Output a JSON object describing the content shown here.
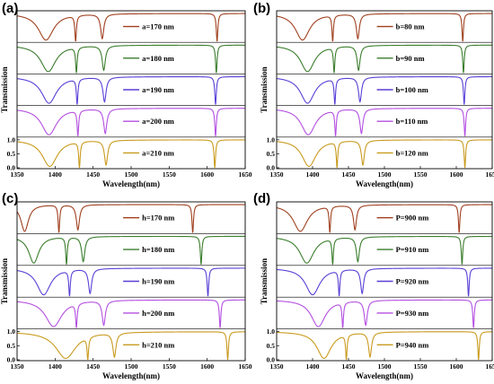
{
  "chart_data": [
    {
      "type": "line",
      "panel_label": "(a)",
      "xlabel": "Wavelength(nm)",
      "ylabel": "Transmission",
      "xlim": [
        1350,
        1650
      ],
      "xticks": [
        1350,
        1400,
        1450,
        1500,
        1550,
        1600,
        1650
      ],
      "yticks": [
        0.0,
        0.5,
        1.0
      ],
      "series": [
        {
          "name": "a=170 nm",
          "color": "#a0401f",
          "dips": [
            {
              "x": 1388,
              "w": 12,
              "d": 0.95
            },
            {
              "x": 1427,
              "w": 1.2,
              "d": 1.0
            },
            {
              "x": 1462,
              "w": 2.5,
              "d": 0.9
            },
            {
              "x": 1613,
              "w": 1.2,
              "d": 1.0
            }
          ]
        },
        {
          "name": "a=180 nm",
          "color": "#3a7d2c",
          "dips": [
            {
              "x": 1391,
              "w": 12,
              "d": 0.95
            },
            {
              "x": 1428,
              "w": 1.2,
              "d": 1.0
            },
            {
              "x": 1464,
              "w": 2.5,
              "d": 0.9
            },
            {
              "x": 1612,
              "w": 1.2,
              "d": 1.0
            }
          ]
        },
        {
          "name": "a=190 nm",
          "color": "#5a3fd6",
          "dips": [
            {
              "x": 1392,
              "w": 12,
              "d": 0.95
            },
            {
              "x": 1429,
              "w": 1.2,
              "d": 1.0
            },
            {
              "x": 1465,
              "w": 2.5,
              "d": 0.9
            },
            {
              "x": 1611,
              "w": 1.2,
              "d": 1.0
            }
          ]
        },
        {
          "name": "a=200 nm",
          "color": "#b44fe0",
          "dips": [
            {
              "x": 1392,
              "w": 12,
              "d": 0.95
            },
            {
              "x": 1430,
              "w": 1.2,
              "d": 1.0
            },
            {
              "x": 1466,
              "w": 2.5,
              "d": 0.9
            },
            {
              "x": 1611,
              "w": 1.2,
              "d": 1.0
            }
          ]
        },
        {
          "name": "a=210 nm",
          "color": "#c99a1e",
          "dips": [
            {
              "x": 1393,
              "w": 12,
              "d": 0.95
            },
            {
              "x": 1432,
              "w": 1.2,
              "d": 1.0
            },
            {
              "x": 1467,
              "w": 2.5,
              "d": 0.9
            },
            {
              "x": 1610,
              "w": 1.2,
              "d": 1.0
            }
          ]
        }
      ]
    },
    {
      "type": "line",
      "panel_label": "(b)",
      "xlabel": "Wavelength(nm)",
      "ylabel": "Transmission",
      "xlim": [
        1350,
        1650
      ],
      "xticks": [
        1350,
        1400,
        1450,
        1500,
        1550,
        1600,
        1650
      ],
      "yticks": [
        0.0,
        0.5,
        1.0
      ],
      "series": [
        {
          "name": "b=80 nm",
          "color": "#a0401f",
          "dips": [
            {
              "x": 1386,
              "w": 12,
              "d": 0.95
            },
            {
              "x": 1428,
              "w": 1.2,
              "d": 1.0
            },
            {
              "x": 1463,
              "w": 2.5,
              "d": 0.9
            },
            {
              "x": 1609,
              "w": 1.2,
              "d": 1.0
            }
          ]
        },
        {
          "name": "b=90 nm",
          "color": "#3a7d2c",
          "dips": [
            {
              "x": 1393,
              "w": 12,
              "d": 0.95
            },
            {
              "x": 1430,
              "w": 1.2,
              "d": 1.0
            },
            {
              "x": 1464,
              "w": 2.5,
              "d": 0.9
            },
            {
              "x": 1610,
              "w": 1.2,
              "d": 1.0
            }
          ]
        },
        {
          "name": "b=100 nm",
          "color": "#5a3fd6",
          "dips": [
            {
              "x": 1393,
              "w": 12,
              "d": 0.95
            },
            {
              "x": 1431,
              "w": 1.2,
              "d": 1.0
            },
            {
              "x": 1466,
              "w": 2.5,
              "d": 0.9
            },
            {
              "x": 1611,
              "w": 1.2,
              "d": 1.0
            }
          ]
        },
        {
          "name": "b=110 nm",
          "color": "#b44fe0",
          "dips": [
            {
              "x": 1394,
              "w": 12,
              "d": 0.95
            },
            {
              "x": 1432,
              "w": 1.2,
              "d": 1.0
            },
            {
              "x": 1468,
              "w": 2.5,
              "d": 0.9
            },
            {
              "x": 1612,
              "w": 1.2,
              "d": 1.0
            }
          ]
        },
        {
          "name": "b=120 nm",
          "color": "#c99a1e",
          "dips": [
            {
              "x": 1395,
              "w": 12,
              "d": 0.95
            },
            {
              "x": 1434,
              "w": 1.2,
              "d": 1.0
            },
            {
              "x": 1470,
              "w": 2.5,
              "d": 0.9
            },
            {
              "x": 1612,
              "w": 1.2,
              "d": 1.0
            }
          ]
        }
      ]
    },
    {
      "type": "line",
      "panel_label": "(c)",
      "xlabel": "Wavelength(nm)",
      "ylabel": "Transmission",
      "xlim": [
        1350,
        1650
      ],
      "xticks": [
        1350,
        1400,
        1450,
        1500,
        1550,
        1600,
        1650
      ],
      "yticks": [
        0.0,
        0.5,
        1.0
      ],
      "series": [
        {
          "name": "h=170 nm",
          "color": "#a0401f",
          "dips": [
            {
              "x": 1360,
              "w": 6,
              "d": 0.95
            },
            {
              "x": 1405,
              "w": 1.2,
              "d": 1.0
            },
            {
              "x": 1430,
              "w": 2.5,
              "d": 0.9
            },
            {
              "x": 1581,
              "w": 1.2,
              "d": 1.0
            }
          ]
        },
        {
          "name": "h=180 nm",
          "color": "#3a7d2c",
          "dips": [
            {
              "x": 1372,
              "w": 8,
              "d": 0.95
            },
            {
              "x": 1415,
              "w": 1.2,
              "d": 1.0
            },
            {
              "x": 1437,
              "w": 2.5,
              "d": 0.9
            },
            {
              "x": 1592,
              "w": 1.2,
              "d": 1.0
            }
          ]
        },
        {
          "name": "h=190 nm",
          "color": "#5a3fd6",
          "dips": [
            {
              "x": 1385,
              "w": 11,
              "d": 0.95
            },
            {
              "x": 1419,
              "w": 1.2,
              "d": 1.0
            },
            {
              "x": 1446,
              "w": 2.5,
              "d": 0.9
            },
            {
              "x": 1601,
              "w": 1.2,
              "d": 1.0
            }
          ]
        },
        {
          "name": "h=200 nm",
          "color": "#b44fe0",
          "dips": [
            {
              "x": 1398,
              "w": 13,
              "d": 0.95
            },
            {
              "x": 1428,
              "w": 1.2,
              "d": 1.0
            },
            {
              "x": 1464,
              "w": 2.5,
              "d": 0.9
            },
            {
              "x": 1617,
              "w": 1.2,
              "d": 1.0
            }
          ]
        },
        {
          "name": "h=210 nm",
          "color": "#c99a1e",
          "dips": [
            {
              "x": 1414,
              "w": 16,
              "d": 0.95
            },
            {
              "x": 1443,
              "w": 1.2,
              "d": 1.0
            },
            {
              "x": 1478,
              "w": 2.5,
              "d": 0.9
            },
            {
              "x": 1627,
              "w": 1.2,
              "d": 1.0
            }
          ]
        }
      ]
    },
    {
      "type": "line",
      "panel_label": "(d)",
      "xlabel": "Wavelength(nm)",
      "ylabel": "Transmission",
      "xlim": [
        1350,
        1650
      ],
      "xticks": [
        1350,
        1400,
        1450,
        1500,
        1550,
        1600,
        1650
      ],
      "yticks": [
        0.0,
        0.5,
        1.0
      ],
      "series": [
        {
          "name": "P=900 nm",
          "color": "#a0401f",
          "dips": [
            {
              "x": 1383,
              "w": 12,
              "d": 0.95
            },
            {
              "x": 1424,
              "w": 1.2,
              "d": 1.0
            },
            {
              "x": 1459,
              "w": 2.5,
              "d": 0.9
            },
            {
              "x": 1604,
              "w": 1.2,
              "d": 1.0
            }
          ]
        },
        {
          "name": "P=910 nm",
          "color": "#3a7d2c",
          "dips": [
            {
              "x": 1392,
              "w": 12,
              "d": 0.95
            },
            {
              "x": 1428,
              "w": 1.2,
              "d": 1.0
            },
            {
              "x": 1463,
              "w": 2.5,
              "d": 0.9
            },
            {
              "x": 1608,
              "w": 1.2,
              "d": 1.0
            }
          ]
        },
        {
          "name": "P=920 nm",
          "color": "#5a3fd6",
          "dips": [
            {
              "x": 1400,
              "w": 12,
              "d": 0.95
            },
            {
              "x": 1437,
              "w": 1.2,
              "d": 1.0
            },
            {
              "x": 1469,
              "w": 2.5,
              "d": 0.9
            },
            {
              "x": 1617,
              "w": 1.2,
              "d": 1.0
            }
          ]
        },
        {
          "name": "P=930 nm",
          "color": "#b44fe0",
          "dips": [
            {
              "x": 1408,
              "w": 12,
              "d": 0.95
            },
            {
              "x": 1442,
              "w": 1.2,
              "d": 1.0
            },
            {
              "x": 1474,
              "w": 2.5,
              "d": 0.9
            },
            {
              "x": 1624,
              "w": 1.2,
              "d": 1.0
            }
          ]
        },
        {
          "name": "P=940 nm",
          "color": "#c99a1e",
          "dips": [
            {
              "x": 1416,
              "w": 12,
              "d": 0.95
            },
            {
              "x": 1447,
              "w": 1.2,
              "d": 1.0
            },
            {
              "x": 1480,
              "w": 2.5,
              "d": 0.9
            },
            {
              "x": 1631,
              "w": 1.2,
              "d": 1.0
            }
          ]
        }
      ]
    }
  ]
}
